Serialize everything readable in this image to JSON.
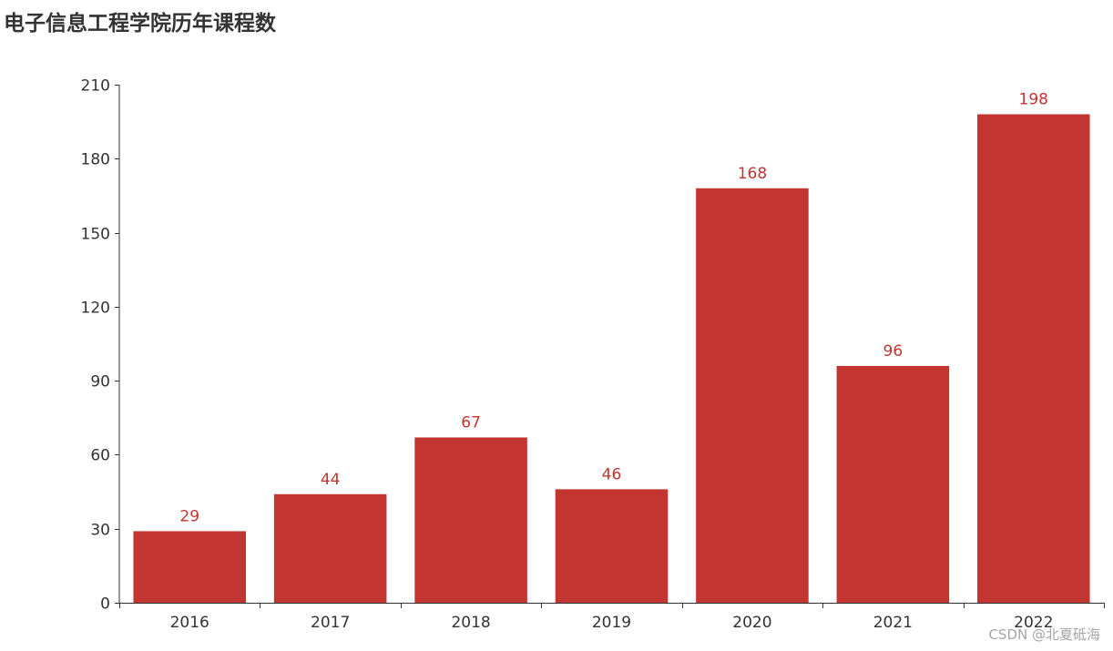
{
  "chart_data": {
    "type": "bar",
    "title": "电子信息工程学院历年课程数",
    "categories": [
      "2016",
      "2017",
      "2018",
      "2019",
      "2020",
      "2021",
      "2022"
    ],
    "values": [
      29,
      44,
      67,
      46,
      168,
      96,
      198
    ],
    "ylim": [
      0,
      210
    ],
    "yticks": [
      0,
      30,
      60,
      90,
      120,
      150,
      180,
      210
    ],
    "xlabel": "",
    "ylabel": "",
    "grid": false,
    "bar_color": "#c23531",
    "label_color": "#c23531",
    "axis_color": "#333333"
  },
  "watermark": "CSDN @北夏砥海"
}
